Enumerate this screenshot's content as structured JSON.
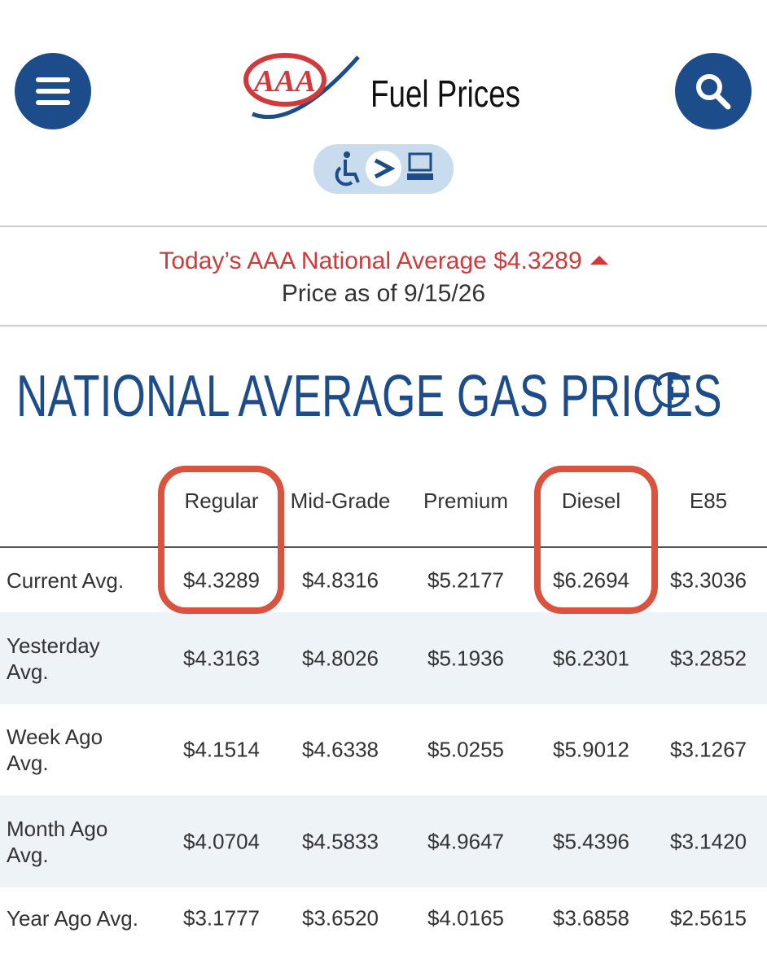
{
  "header": {
    "logo": "AAA",
    "title": "Fuel Prices"
  },
  "banner": {
    "national_average": "Today’s AAA National Average $4.3289",
    "date": "Price as of 9/15/26"
  },
  "section": {
    "title": "NATIONAL AVERAGE GAS PRICES"
  },
  "table": {
    "columns": [
      "Regular",
      "Mid-Grade",
      "Premium",
      "Diesel",
      "E85"
    ],
    "rows": [
      [
        "Current Avg.",
        "$4.3289",
        "$4.8316",
        "$5.2177",
        "$6.2694",
        "$3.3036"
      ],
      [
        "Yesterday Avg.",
        "$4.3163",
        "$4.8026",
        "$5.1936",
        "$6.2301",
        "$3.2852"
      ],
      [
        "Week Ago Avg.",
        "$4.1514",
        "$4.6338",
        "$5.0255",
        "$5.9012",
        "$3.1267"
      ],
      [
        "Month Ago Avg.",
        "$4.0704",
        "$4.5833",
        "$4.9647",
        "$5.4396",
        "$3.1420"
      ],
      [
        "Year Ago Avg.",
        "$3.1777",
        "$3.6520",
        "$4.0165",
        "$3.6858",
        "$2.5615"
      ]
    ]
  }
}
